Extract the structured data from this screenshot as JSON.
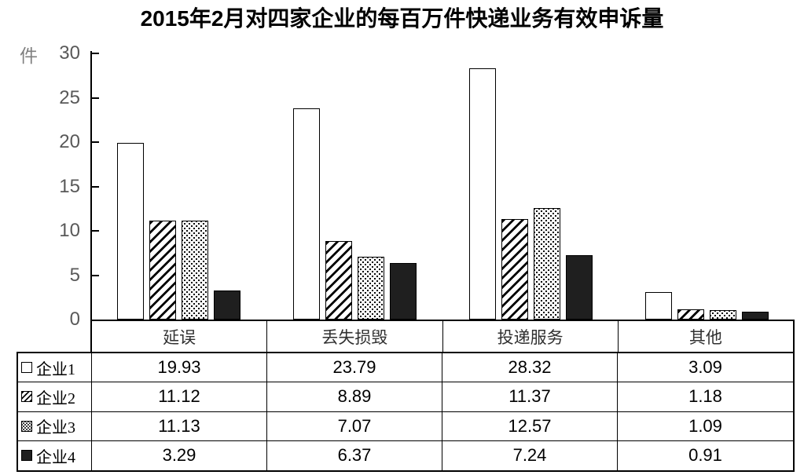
{
  "title": "2015年2月对四家企业的每百万件快递业务有效申诉量",
  "chart_data": {
    "type": "bar",
    "title": "2015年2月对四家企业的每百万件快递业务有效申诉量",
    "unit_label": "件",
    "categories": [
      "延误",
      "丢失损毁",
      "投递服务",
      "其他"
    ],
    "series": [
      {
        "name": "企业1",
        "pattern": "white",
        "values": [
          19.93,
          23.79,
          28.32,
          3.09
        ]
      },
      {
        "name": "企业2",
        "pattern": "diagonal-stripes",
        "values": [
          11.12,
          8.89,
          11.37,
          1.18
        ]
      },
      {
        "name": "企业3",
        "pattern": "dots",
        "values": [
          11.13,
          7.07,
          12.57,
          1.09
        ]
      },
      {
        "name": "企业4",
        "pattern": "solid",
        "values": [
          3.29,
          6.37,
          7.24,
          0.91
        ]
      }
    ],
    "ylim": [
      0,
      30
    ],
    "yticks": [
      30,
      25,
      20,
      15,
      10,
      5,
      0
    ],
    "value_decimals": 2,
    "grid": false,
    "legend_position": "table-rows-left",
    "data_table_shown": true
  },
  "colors": {
    "background": "#ffffff",
    "outline": "#000000",
    "bar_white_fill": "#ffffff",
    "bar_black_fill": "#1f1f1f",
    "axis_tick_text": "#595959",
    "unit_text": "#7f7f7f",
    "category_text": "#303030",
    "table_value_text": "#000000"
  }
}
